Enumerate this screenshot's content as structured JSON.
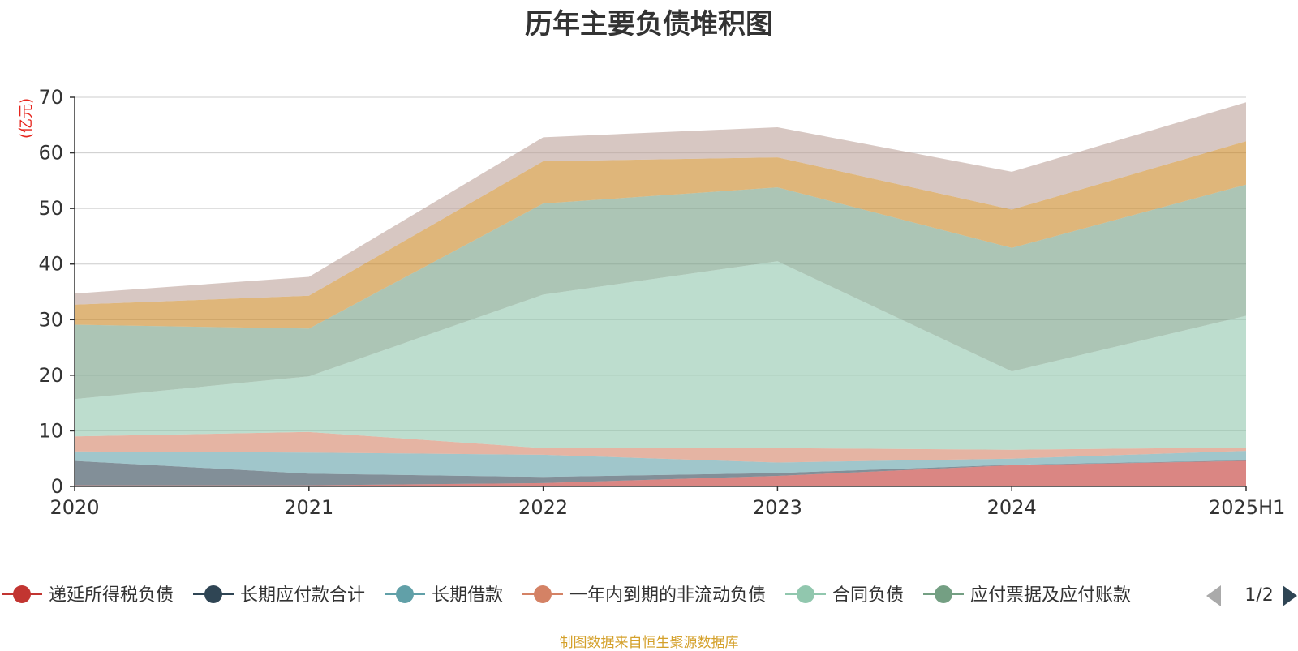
{
  "chart_data": {
    "type": "area",
    "title": "历年主要负债堆积图",
    "ylabel": "(亿元)",
    "ylim": [
      0,
      70
    ],
    "yticks": [
      "0",
      "10",
      "20",
      "30",
      "40",
      "50",
      "60",
      "70"
    ],
    "categories": [
      "2020",
      "2021",
      "2022",
      "2023",
      "2024",
      "2025H1"
    ],
    "stacked": true,
    "grid": true,
    "series": [
      {
        "name": "递延所得税负债",
        "color": "#c23531",
        "values": [
          0.2,
          0.2,
          0.6,
          1.9,
          3.8,
          4.6
        ]
      },
      {
        "name": "长期应付款合计",
        "color": "#2f4554",
        "values": [
          4.4,
          2.1,
          1.1,
          0.5,
          0.1,
          0.1
        ]
      },
      {
        "name": "长期借款",
        "color": "#61a0a8",
        "values": [
          1.7,
          3.8,
          4.0,
          1.9,
          1.1,
          1.7
        ]
      },
      {
        "name": "一年内到期的非流动负债",
        "color": "#d48265",
        "values": [
          2.7,
          3.7,
          1.2,
          2.6,
          1.6,
          0.6
        ]
      },
      {
        "name": "合同负债",
        "color": "#91c7ae",
        "values": [
          6.7,
          10.0,
          27.6,
          33.6,
          14.1,
          23.7
        ]
      },
      {
        "name": "应付票据及应付账款",
        "color": "#749f83",
        "values": [
          13.4,
          8.6,
          16.4,
          13.3,
          22.2,
          23.6
        ]
      },
      {
        "name": "",
        "color": "#ca8622",
        "values": [
          3.6,
          5.9,
          7.6,
          5.4,
          6.9,
          7.8
        ]
      },
      {
        "name": "",
        "color": "#bda29a",
        "values": [
          2.0,
          3.4,
          4.3,
          5.4,
          6.8,
          7.0
        ]
      }
    ],
    "legend": {
      "position": "bottom",
      "page_indicator": "1/2"
    }
  },
  "source_note": "制图数据来自恒生聚源数据库",
  "colors": {
    "unit_label": "#e6251d",
    "source_note": "#d4a02a",
    "axis": "#333333",
    "grid": "#cccccc"
  },
  "icons": {
    "legend_prev": "triangle-left-icon",
    "legend_next": "triangle-right-icon"
  }
}
